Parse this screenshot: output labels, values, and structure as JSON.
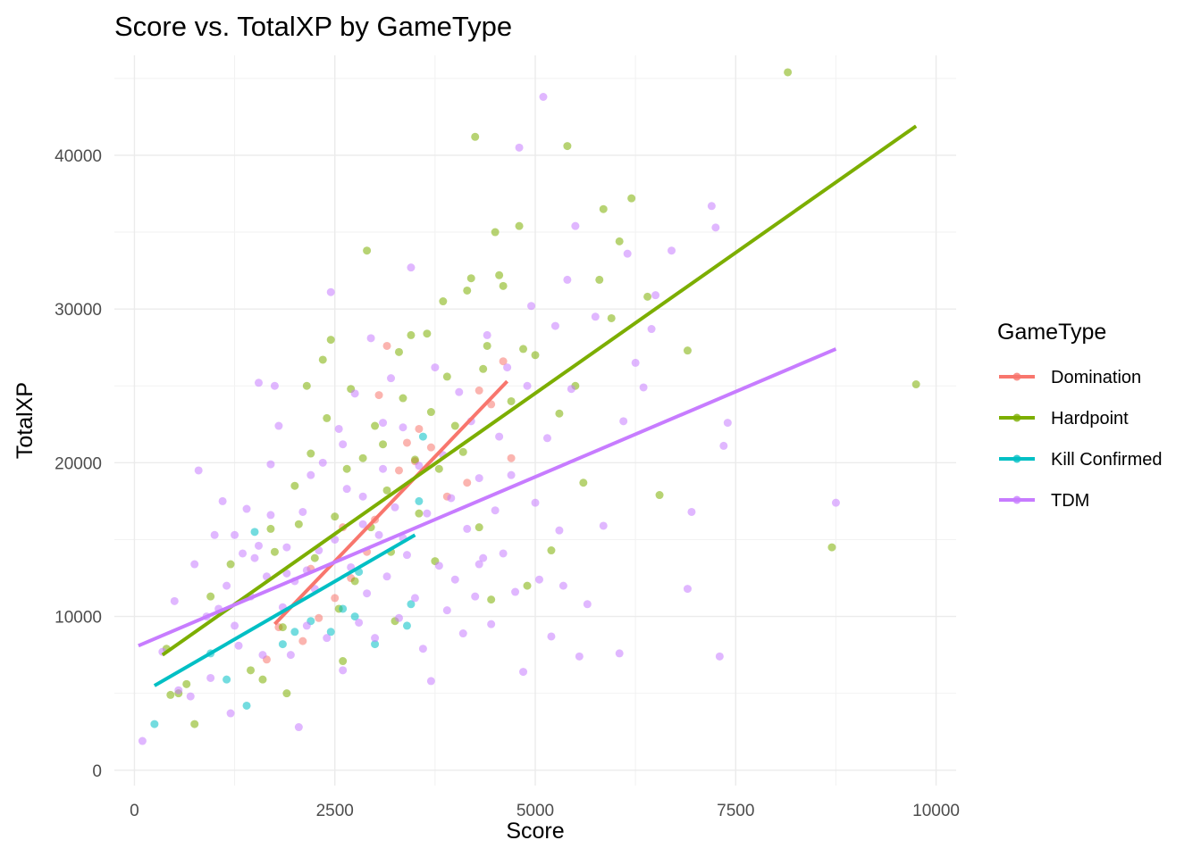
{
  "chart_data": {
    "type": "scatter",
    "title": "Score vs. TotalXP by GameType",
    "xlabel": "Score",
    "ylabel": "TotalXP",
    "xlim": [
      -250,
      10250
    ],
    "ylim": [
      -1000,
      46500
    ],
    "xticks": [
      0,
      2500,
      5000,
      7500,
      10000
    ],
    "yticks": [
      0,
      10000,
      20000,
      30000,
      40000
    ],
    "xtick_labels": [
      "0",
      "2500",
      "5000",
      "7500",
      "10000"
    ],
    "ytick_labels": [
      "0",
      "10000",
      "20000",
      "30000",
      "40000"
    ],
    "grid": true,
    "legend": {
      "title": "GameType",
      "position": "right"
    },
    "series": [
      {
        "name": "Domination",
        "color": "#F8766D",
        "points": [
          [
            1650,
            7200
          ],
          [
            1800,
            9300
          ],
          [
            2100,
            8400
          ],
          [
            2300,
            9900
          ],
          [
            2500,
            11200
          ],
          [
            2700,
            12500
          ],
          [
            2900,
            14200
          ],
          [
            3050,
            24400
          ],
          [
            3150,
            27600
          ],
          [
            3300,
            19500
          ],
          [
            3400,
            21300
          ],
          [
            3500,
            20100
          ],
          [
            3550,
            22200
          ],
          [
            3700,
            21000
          ],
          [
            3900,
            17800
          ],
          [
            4150,
            18700
          ],
          [
            4300,
            24700
          ],
          [
            4450,
            23800
          ],
          [
            4600,
            26600
          ],
          [
            4700,
            20300
          ],
          [
            2200,
            13100
          ],
          [
            2600,
            15800
          ],
          [
            3000,
            16300
          ]
        ],
        "trend": {
          "x": [
            1750,
            4650
          ],
          "y": [
            9500,
            25300
          ]
        }
      },
      {
        "name": "Hardpoint",
        "color": "#7CAE00",
        "points": [
          [
            400,
            7900
          ],
          [
            450,
            4900
          ],
          [
            550,
            5000
          ],
          [
            650,
            5600
          ],
          [
            750,
            3000
          ],
          [
            950,
            11300
          ],
          [
            1200,
            13400
          ],
          [
            1450,
            6500
          ],
          [
            1600,
            5900
          ],
          [
            1700,
            15700
          ],
          [
            1750,
            14200
          ],
          [
            1850,
            9300
          ],
          [
            1900,
            5000
          ],
          [
            2000,
            18500
          ],
          [
            2050,
            16000
          ],
          [
            2150,
            25000
          ],
          [
            2200,
            20600
          ],
          [
            2250,
            13800
          ],
          [
            2350,
            26700
          ],
          [
            2400,
            22900
          ],
          [
            2450,
            28000
          ],
          [
            2500,
            16500
          ],
          [
            2550,
            10500
          ],
          [
            2600,
            7100
          ],
          [
            2650,
            19600
          ],
          [
            2700,
            24800
          ],
          [
            2750,
            12300
          ],
          [
            2850,
            20300
          ],
          [
            2900,
            33800
          ],
          [
            2950,
            15800
          ],
          [
            3000,
            22400
          ],
          [
            3100,
            21200
          ],
          [
            3150,
            18200
          ],
          [
            3200,
            14200
          ],
          [
            3250,
            9700
          ],
          [
            3300,
            27200
          ],
          [
            3350,
            24200
          ],
          [
            3450,
            28300
          ],
          [
            3500,
            20200
          ],
          [
            3550,
            16700
          ],
          [
            3650,
            28400
          ],
          [
            3700,
            23300
          ],
          [
            3750,
            13600
          ],
          [
            3800,
            19600
          ],
          [
            3850,
            30500
          ],
          [
            3900,
            25600
          ],
          [
            4000,
            22400
          ],
          [
            4100,
            20700
          ],
          [
            4150,
            31200
          ],
          [
            4200,
            32000
          ],
          [
            4250,
            41200
          ],
          [
            4300,
            15800
          ],
          [
            4350,
            26100
          ],
          [
            4400,
            27600
          ],
          [
            4450,
            11100
          ],
          [
            4500,
            35000
          ],
          [
            4550,
            32200
          ],
          [
            4600,
            31500
          ],
          [
            4700,
            24000
          ],
          [
            4800,
            35400
          ],
          [
            4850,
            27400
          ],
          [
            4900,
            12000
          ],
          [
            5000,
            27000
          ],
          [
            5200,
            14300
          ],
          [
            5300,
            23200
          ],
          [
            5400,
            40600
          ],
          [
            5500,
            25000
          ],
          [
            5600,
            18700
          ],
          [
            5800,
            31900
          ],
          [
            5850,
            36500
          ],
          [
            5950,
            29400
          ],
          [
            6050,
            34400
          ],
          [
            6200,
            37200
          ],
          [
            6400,
            30800
          ],
          [
            6550,
            17900
          ],
          [
            6900,
            27300
          ],
          [
            8150,
            45400
          ],
          [
            8700,
            14500
          ],
          [
            9750,
            25100
          ]
        ],
        "trend": {
          "x": [
            350,
            9750
          ],
          "y": [
            7500,
            41900
          ]
        }
      },
      {
        "name": "Kill Confirmed",
        "color": "#00BFC4",
        "points": [
          [
            250,
            3000
          ],
          [
            950,
            7600
          ],
          [
            1150,
            5900
          ],
          [
            1400,
            4200
          ],
          [
            1500,
            15500
          ],
          [
            1850,
            8200
          ],
          [
            2200,
            9700
          ],
          [
            2450,
            9000
          ],
          [
            2600,
            10500
          ],
          [
            2750,
            10000
          ],
          [
            3000,
            8200
          ],
          [
            3400,
            9400
          ],
          [
            3450,
            10800
          ],
          [
            3550,
            17500
          ],
          [
            3600,
            21700
          ],
          [
            2000,
            9000
          ],
          [
            2800,
            12900
          ]
        ],
        "trend": {
          "x": [
            250,
            3500
          ],
          "y": [
            5500,
            15300
          ]
        }
      },
      {
        "name": "TDM",
        "color": "#C77CFF",
        "points": [
          [
            100,
            1900
          ],
          [
            350,
            7700
          ],
          [
            500,
            11000
          ],
          [
            550,
            5200
          ],
          [
            700,
            4800
          ],
          [
            750,
            13400
          ],
          [
            800,
            19500
          ],
          [
            900,
            10000
          ],
          [
            950,
            6000
          ],
          [
            1000,
            15300
          ],
          [
            1050,
            10500
          ],
          [
            1100,
            17500
          ],
          [
            1150,
            12000
          ],
          [
            1200,
            3700
          ],
          [
            1250,
            15300
          ],
          [
            1300,
            8100
          ],
          [
            1350,
            14100
          ],
          [
            1400,
            17000
          ],
          [
            1450,
            11300
          ],
          [
            1500,
            13800
          ],
          [
            1550,
            25200
          ],
          [
            1600,
            7500
          ],
          [
            1650,
            12600
          ],
          [
            1700,
            16600
          ],
          [
            1750,
            25000
          ],
          [
            1800,
            22400
          ],
          [
            1850,
            10600
          ],
          [
            1900,
            14500
          ],
          [
            1950,
            7500
          ],
          [
            2000,
            12300
          ],
          [
            2050,
            2800
          ],
          [
            2100,
            16800
          ],
          [
            2150,
            9400
          ],
          [
            2200,
            19200
          ],
          [
            2250,
            11800
          ],
          [
            2300,
            14300
          ],
          [
            2350,
            20000
          ],
          [
            2400,
            8600
          ],
          [
            2450,
            31100
          ],
          [
            2500,
            15000
          ],
          [
            2550,
            22200
          ],
          [
            2600,
            6500
          ],
          [
            2650,
            18300
          ],
          [
            2700,
            13200
          ],
          [
            2750,
            24500
          ],
          [
            2800,
            9600
          ],
          [
            2850,
            17800
          ],
          [
            2900,
            11500
          ],
          [
            2950,
            28100
          ],
          [
            3000,
            8600
          ],
          [
            3050,
            15300
          ],
          [
            3100,
            19600
          ],
          [
            3150,
            12600
          ],
          [
            3200,
            25500
          ],
          [
            3250,
            17100
          ],
          [
            3300,
            9900
          ],
          [
            3350,
            22300
          ],
          [
            3400,
            14000
          ],
          [
            3450,
            32700
          ],
          [
            3500,
            11200
          ],
          [
            3550,
            19800
          ],
          [
            3600,
            7900
          ],
          [
            3650,
            16700
          ],
          [
            3700,
            5800
          ],
          [
            3750,
            26200
          ],
          [
            3800,
            13300
          ],
          [
            3850,
            20500
          ],
          [
            3900,
            10400
          ],
          [
            3950,
            17700
          ],
          [
            4000,
            12400
          ],
          [
            4050,
            24600
          ],
          [
            4100,
            8900
          ],
          [
            4150,
            15700
          ],
          [
            4200,
            22700
          ],
          [
            4250,
            11300
          ],
          [
            4300,
            19000
          ],
          [
            4350,
            13800
          ],
          [
            4400,
            28300
          ],
          [
            4450,
            9500
          ],
          [
            4500,
            16900
          ],
          [
            4550,
            21700
          ],
          [
            4600,
            14100
          ],
          [
            4650,
            26200
          ],
          [
            4700,
            19200
          ],
          [
            4750,
            11600
          ],
          [
            4800,
            40500
          ],
          [
            4850,
            6400
          ],
          [
            4900,
            25000
          ],
          [
            4950,
            30200
          ],
          [
            5000,
            17400
          ],
          [
            5050,
            12400
          ],
          [
            5100,
            43800
          ],
          [
            5150,
            21600
          ],
          [
            5200,
            8700
          ],
          [
            5250,
            28900
          ],
          [
            5300,
            15600
          ],
          [
            5350,
            12000
          ],
          [
            5400,
            31900
          ],
          [
            5450,
            24800
          ],
          [
            5500,
            35400
          ],
          [
            5550,
            7400
          ],
          [
            5650,
            10800
          ],
          [
            5750,
            29500
          ],
          [
            5850,
            15900
          ],
          [
            6050,
            7600
          ],
          [
            6100,
            22700
          ],
          [
            6150,
            33600
          ],
          [
            6250,
            26500
          ],
          [
            6350,
            24900
          ],
          [
            6450,
            28700
          ],
          [
            6500,
            30900
          ],
          [
            6700,
            33800
          ],
          [
            6900,
            11800
          ],
          [
            6950,
            16800
          ],
          [
            7200,
            36700
          ],
          [
            7250,
            35300
          ],
          [
            7300,
            7400
          ],
          [
            7350,
            21100
          ],
          [
            7400,
            22600
          ],
          [
            8750,
            17400
          ],
          [
            2600,
            21200
          ],
          [
            3100,
            22600
          ],
          [
            1700,
            19900
          ],
          [
            2150,
            13000
          ],
          [
            2850,
            16000
          ],
          [
            3350,
            15100
          ],
          [
            4300,
            13400
          ],
          [
            1250,
            9400
          ],
          [
            1550,
            14600
          ],
          [
            1900,
            12800
          ]
        ],
        "trend": {
          "x": [
            50,
            8750
          ],
          "y": [
            8100,
            27400
          ]
        }
      }
    ]
  }
}
